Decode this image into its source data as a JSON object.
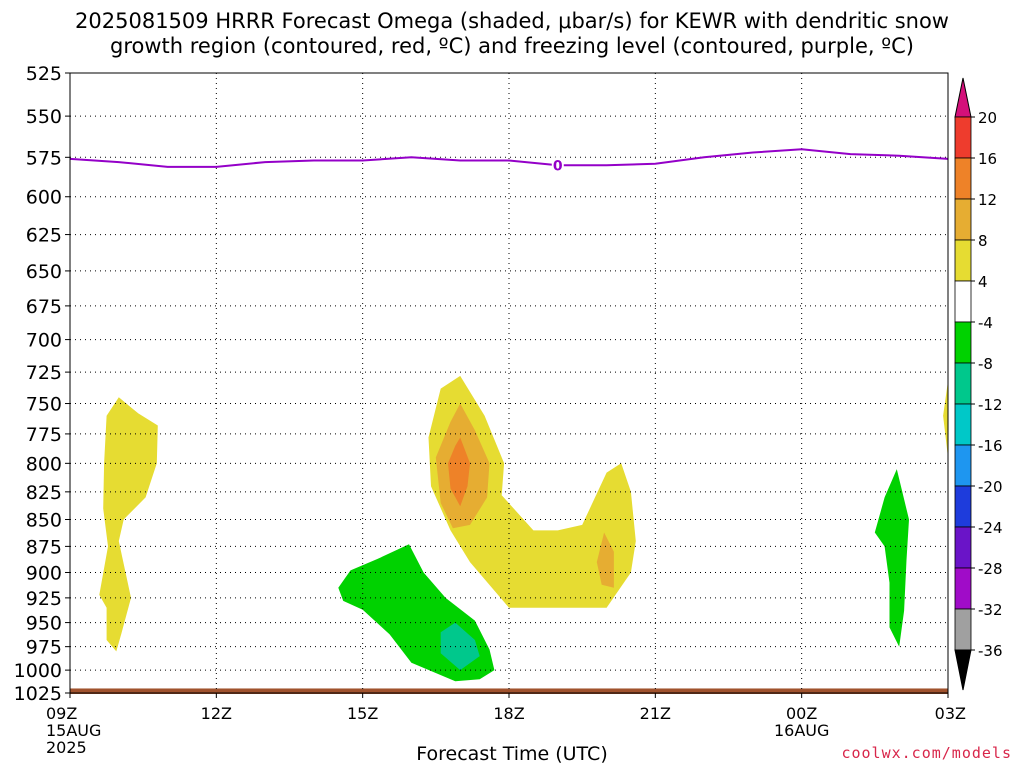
{
  "title_line1": "2025081509 HRRR Forecast Omega (shaded, μbar/s) for KEWR with dendritic snow",
  "title_line2": "growth region (contoured, red, ºC) and freezing level (contoured, purple, ºC)",
  "xlabel": "Forecast Time (UTC)",
  "credit": "coolwx.com/models",
  "chart_data": {
    "type": "heatmap",
    "title": "2025081509 HRRR Forecast Omega (shaded, μbar/s) for KEWR with dendritic snow growth region (contoured, red, ºC) and freezing level (contoured, purple, ºC)",
    "xlabel": "Forecast Time (UTC)",
    "ylabel": "",
    "x_range_hours": [
      9,
      27
    ],
    "y_range_hPa": [
      525,
      1025
    ],
    "y_scale": "log-pressure",
    "grid": true,
    "x_ticks": [
      {
        "hour": 9,
        "label": "09Z",
        "sub": [
          "15AUG",
          "2025"
        ]
      },
      {
        "hour": 12,
        "label": "12Z",
        "sub": []
      },
      {
        "hour": 15,
        "label": "15Z",
        "sub": []
      },
      {
        "hour": 18,
        "label": "18Z",
        "sub": []
      },
      {
        "hour": 21,
        "label": "21Z",
        "sub": []
      },
      {
        "hour": 24,
        "label": "00Z",
        "sub": [
          "16AUG"
        ]
      },
      {
        "hour": 27,
        "label": "03Z",
        "sub": []
      }
    ],
    "y_ticks": [
      525,
      550,
      575,
      600,
      625,
      650,
      675,
      700,
      725,
      750,
      775,
      800,
      825,
      850,
      875,
      900,
      925,
      950,
      975,
      1000,
      1025
    ],
    "colorbar": {
      "labels": [
        20,
        16,
        12,
        8,
        4,
        -4,
        -8,
        -12,
        -16,
        -20,
        -24,
        -28,
        -32,
        -36
      ],
      "colors": [
        "#d4107a",
        "#ee3c2d",
        "#ee8228",
        "#e6ad32",
        "#e6dc32",
        "#ffffff",
        "#00d200",
        "#00c88c",
        "#00c8c8",
        "#1e96f0",
        "#1e3cdc",
        "#6a14c8",
        "#a00cc8",
        "#a0a0a0",
        "#000000"
      ]
    },
    "freezing_level": {
      "label": "0",
      "color": "#9400c8",
      "points": [
        [
          9,
          576
        ],
        [
          10,
          578
        ],
        [
          11,
          581
        ],
        [
          12,
          581
        ],
        [
          13,
          578
        ],
        [
          14,
          577
        ],
        [
          15,
          577
        ],
        [
          16,
          575
        ],
        [
          17,
          577
        ],
        [
          18,
          577
        ],
        [
          19,
          580
        ],
        [
          20,
          580
        ],
        [
          21,
          579
        ],
        [
          22,
          575
        ],
        [
          23,
          572
        ],
        [
          24,
          570
        ],
        [
          25,
          573
        ],
        [
          26,
          574
        ],
        [
          27,
          576
        ]
      ]
    },
    "regions": [
      {
        "color": "#e6dc32",
        "points": [
          [
            10.0,
            745
          ],
          [
            10.4,
            758
          ],
          [
            10.8,
            768
          ],
          [
            10.78,
            800
          ],
          [
            10.55,
            830
          ],
          [
            10.1,
            850
          ],
          [
            10.0,
            870
          ],
          [
            10.25,
            925
          ],
          [
            10.05,
            962
          ],
          [
            9.95,
            980
          ],
          [
            9.75,
            968
          ],
          [
            9.75,
            935
          ],
          [
            9.6,
            922
          ],
          [
            9.78,
            875
          ],
          [
            9.68,
            840
          ],
          [
            9.7,
            800
          ],
          [
            9.75,
            760
          ]
        ]
      },
      {
        "color": "#e6dc32",
        "points": [
          [
            17.0,
            728
          ],
          [
            17.5,
            760
          ],
          [
            17.9,
            800
          ],
          [
            17.85,
            828
          ],
          [
            18.5,
            860
          ],
          [
            19.0,
            860
          ],
          [
            19.5,
            855
          ],
          [
            20.0,
            808
          ],
          [
            20.3,
            800
          ],
          [
            20.5,
            825
          ],
          [
            20.6,
            870
          ],
          [
            20.5,
            900
          ],
          [
            20.0,
            935
          ],
          [
            18.0,
            935
          ],
          [
            17.2,
            890
          ],
          [
            16.8,
            860
          ],
          [
            16.4,
            820
          ],
          [
            16.35,
            778
          ],
          [
            16.6,
            738
          ]
        ]
      },
      {
        "color": "#e6ad32",
        "points": [
          [
            17.0,
            750
          ],
          [
            17.3,
            772
          ],
          [
            17.6,
            800
          ],
          [
            17.55,
            830
          ],
          [
            17.2,
            855
          ],
          [
            16.85,
            858
          ],
          [
            16.6,
            835
          ],
          [
            16.5,
            795
          ],
          [
            16.8,
            765
          ]
        ]
      },
      {
        "color": "#ee8228",
        "points": [
          [
            17.0,
            778
          ],
          [
            17.2,
            800
          ],
          [
            17.15,
            820
          ],
          [
            17.0,
            838
          ],
          [
            16.8,
            822
          ],
          [
            16.75,
            800
          ],
          [
            16.9,
            785
          ]
        ]
      },
      {
        "color": "#e6ad32",
        "points": [
          [
            19.95,
            862
          ],
          [
            20.15,
            880
          ],
          [
            20.15,
            915
          ],
          [
            19.9,
            912
          ],
          [
            19.8,
            890
          ]
        ]
      },
      {
        "color": "#00d200",
        "points": [
          [
            15.95,
            873
          ],
          [
            16.25,
            900
          ],
          [
            16.7,
            925
          ],
          [
            17.3,
            948
          ],
          [
            17.6,
            978
          ],
          [
            17.7,
            1000
          ],
          [
            17.4,
            1010
          ],
          [
            16.9,
            1012
          ],
          [
            16.0,
            992
          ],
          [
            15.55,
            962
          ],
          [
            15.0,
            937
          ],
          [
            14.6,
            928
          ],
          [
            14.5,
            915
          ],
          [
            14.75,
            898
          ],
          [
            15.3,
            887
          ]
        ]
      },
      {
        "color": "#00c88c",
        "points": [
          [
            16.9,
            950
          ],
          [
            17.3,
            968
          ],
          [
            17.4,
            985
          ],
          [
            17.0,
            1000
          ],
          [
            16.6,
            982
          ],
          [
            16.6,
            960
          ]
        ]
      },
      {
        "color": "#00d200",
        "points": [
          [
            25.95,
            805
          ],
          [
            26.2,
            850
          ],
          [
            26.15,
            888
          ],
          [
            26.1,
            938
          ],
          [
            26.0,
            975
          ],
          [
            25.8,
            955
          ],
          [
            25.8,
            910
          ],
          [
            25.7,
            875
          ],
          [
            25.5,
            862
          ],
          [
            25.7,
            830
          ]
        ]
      },
      {
        "color": "#e6dc32",
        "points": [
          [
            27.0,
            732
          ],
          [
            26.9,
            760
          ],
          [
            27.0,
            795
          ]
        ]
      }
    ],
    "ground": {
      "color": "#a0522d",
      "pressure": 1020
    }
  }
}
